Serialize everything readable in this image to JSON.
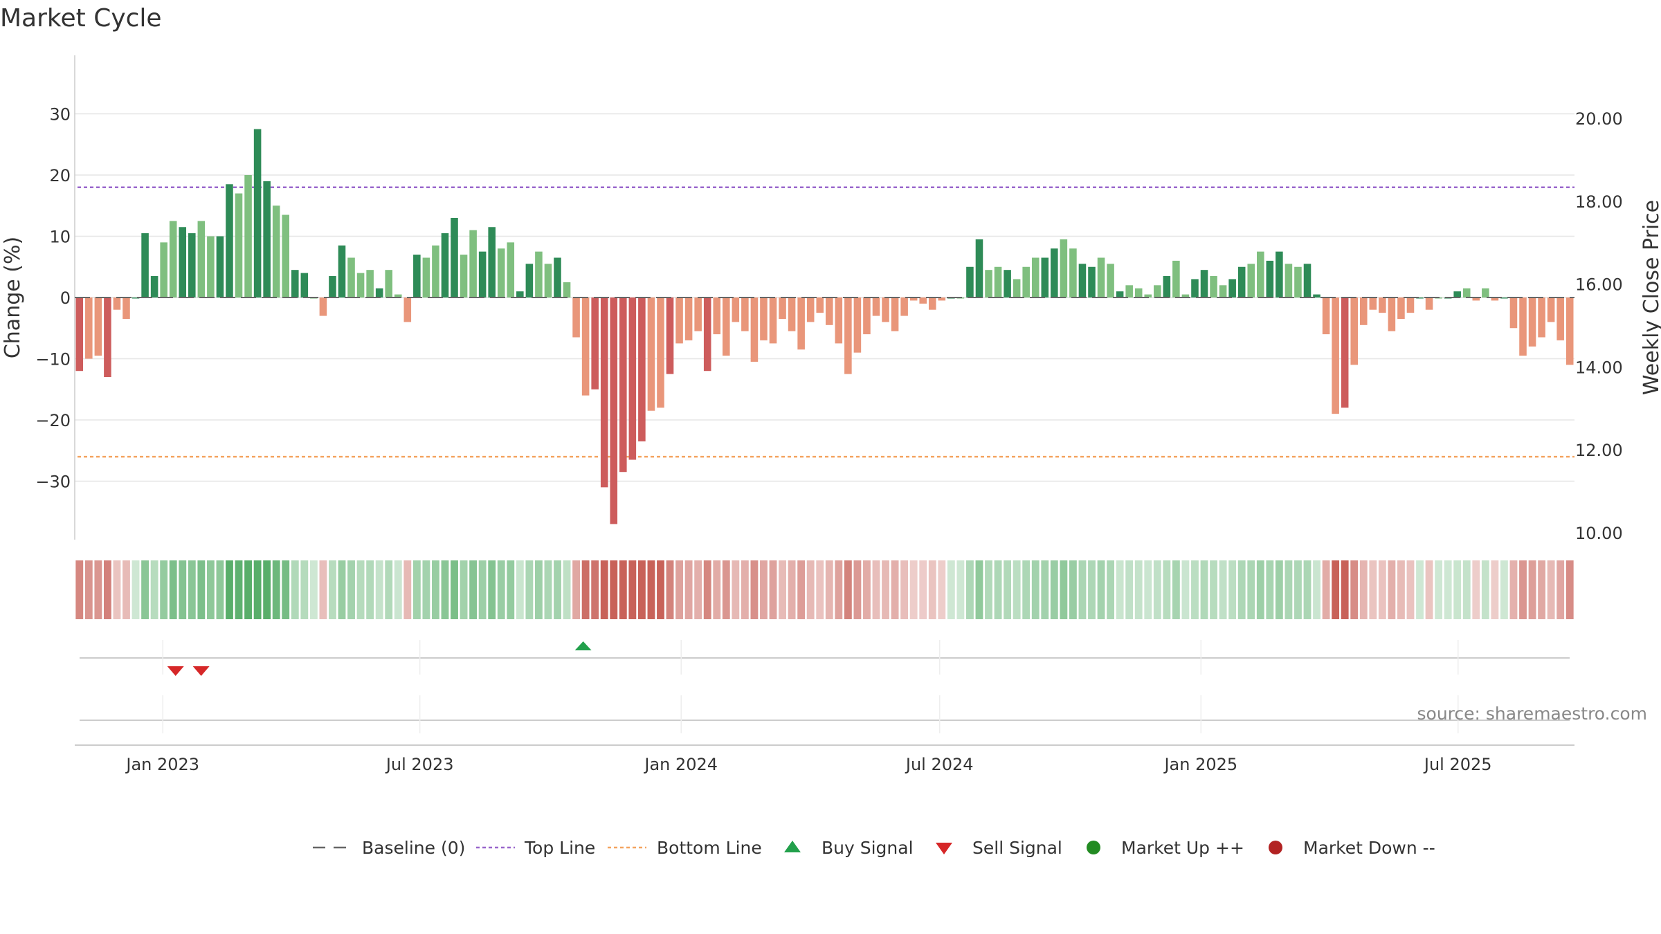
{
  "chart_data": {
    "type": "bar",
    "title": "Market Cycle",
    "ylabel": "Change (%)",
    "y2label": "Weekly Close Price",
    "ylim": [
      -40,
      40
    ],
    "yticks": [
      30,
      20,
      10,
      0,
      -10,
      -20,
      -30
    ],
    "ytick_labels": [
      "30",
      "20",
      "10",
      "0",
      "−10",
      "−20",
      "−30"
    ],
    "y2lim": [
      10,
      21.5
    ],
    "y2ticks": [
      "20.00",
      "18.00",
      "16.00",
      "14.00",
      "12.00",
      "10.00"
    ],
    "top_line": 18,
    "bottom_line": -26,
    "x_start": "2022-10-31",
    "x_end": "2025-09-21",
    "xticks": [
      {
        "date": "2023-01-01",
        "label": "Jan 2023"
      },
      {
        "date": "2023-07-01",
        "label": "Jul 2023"
      },
      {
        "date": "2024-01-01",
        "label": "Jan 2024"
      },
      {
        "date": "2024-07-01",
        "label": "Jul 2024"
      },
      {
        "date": "2025-01-01",
        "label": "Jan 2025"
      },
      {
        "date": "2025-07-01",
        "label": "Jul 2025"
      }
    ],
    "first_week": "2022-11-03",
    "values": [
      -12,
      -10,
      -9.5,
      -13,
      -2,
      -3.5,
      0,
      10.5,
      3.5,
      9,
      12.5,
      11.5,
      10.5,
      12.5,
      10,
      10,
      18.5,
      17,
      20,
      27.5,
      19,
      15,
      13.5,
      4.5,
      4,
      0,
      -3,
      3.5,
      8.5,
      6.5,
      4,
      4.5,
      1.5,
      4.5,
      0.5,
      -4,
      7,
      6.5,
      8.5,
      10.5,
      13,
      7,
      11,
      7.5,
      11.5,
      8,
      9,
      1,
      5.5,
      7.5,
      5.5,
      6.5,
      2.5,
      -6.5,
      -16,
      -15,
      -31,
      -37,
      -28.5,
      -26.5,
      -23.5,
      -18.5,
      -18,
      -12.5,
      -7.5,
      -7,
      -5.5,
      -12,
      -6,
      -9.5,
      -4,
      -5.5,
      -10.5,
      -7,
      -7.5,
      -3.5,
      -5.5,
      -8.5,
      -4,
      -2.5,
      -4.5,
      -7.5,
      -12.5,
      -9,
      -6,
      -3,
      -4,
      -5.5,
      -3,
      -0.5,
      -1,
      -2,
      -0.5,
      0,
      0,
      5,
      9.5,
      4.5,
      5,
      4.5,
      3,
      5,
      6.5,
      6.5,
      8,
      9.5,
      8,
      5.5,
      5,
      6.5,
      5.5,
      1,
      2,
      1.5,
      0.5,
      2,
      3.5,
      6,
      0.5,
      3,
      4.5,
      3.5,
      2,
      3,
      5,
      5.5,
      7.5,
      6,
      7.5,
      5.5,
      5,
      5.5,
      0.5,
      -6,
      -19,
      -18,
      -11,
      -4.5,
      -2,
      -2.5,
      -5.5,
      -3.5,
      -2.5,
      0,
      -2,
      0,
      0,
      1,
      1.5,
      -0.5,
      1.5,
      -0.5,
      0,
      -5,
      -9.5,
      -8,
      -6.5,
      -4,
      -7,
      -11
    ],
    "buy_signals": [
      "2023-10-24"
    ],
    "sell_signals": [
      "2023-01-10",
      "2023-01-28"
    ],
    "colors": {
      "up_strong": "#2e8b57",
      "up_weak": "#7fbf7f",
      "down_strong": "#cd5c5c",
      "down_weak": "#e9967a",
      "top_line": "#9966cc",
      "bottom_line": "#f4a460",
      "buy": "#22a04b",
      "sell": "#d62728",
      "market_up": "#228b22",
      "market_down": "#b22222",
      "baseline": "#666666"
    },
    "legend": [
      {
        "label": "Baseline (0)",
        "marker": "dash"
      },
      {
        "label": "Top Line",
        "marker": "dotted-purple"
      },
      {
        "label": "Bottom Line",
        "marker": "dotted-orange"
      },
      {
        "label": "Buy Signal",
        "marker": "triangle-up"
      },
      {
        "label": "Sell Signal",
        "marker": "triangle-down"
      },
      {
        "label": "Market Up ++",
        "marker": "dot-green"
      },
      {
        "label": "Market Down --",
        "marker": "dot-red"
      }
    ],
    "legend_position": "bottom"
  },
  "source": "source: sharemaestro.com"
}
